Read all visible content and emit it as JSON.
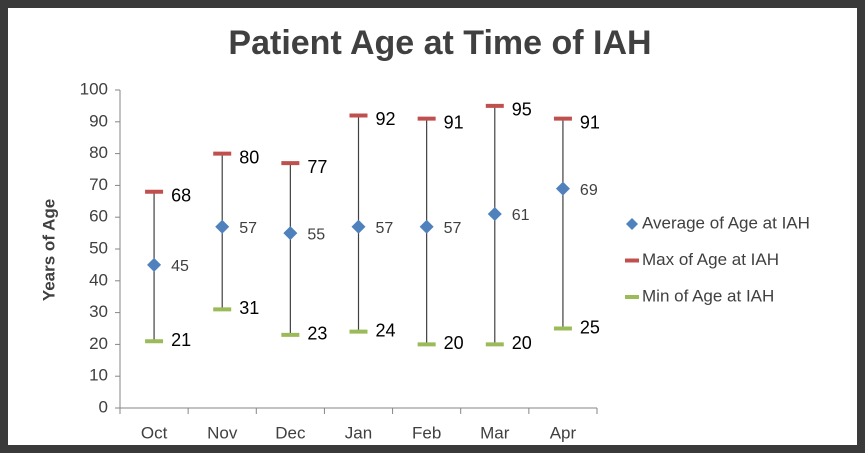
{
  "chart_data": {
    "type": "range",
    "title": "Patient Age at Time of IAH",
    "y_label": "Years of Age",
    "categories": [
      "Oct",
      "Nov",
      "Dec",
      "Jan",
      "Feb",
      "Mar",
      "Apr"
    ],
    "series": [
      {
        "name": "Average of Age at IAH",
        "color": "#4f81bd",
        "values": [
          45,
          57,
          55,
          57,
          57,
          61,
          69
        ]
      },
      {
        "name": "Max of Age at IAH",
        "color": "#c0504d",
        "values": [
          68,
          80,
          77,
          92,
          91,
          95,
          91
        ]
      },
      {
        "name": "Min of Age at IAH",
        "color": "#9bbb59",
        "values": [
          21,
          31,
          23,
          24,
          20,
          20,
          25
        ]
      }
    ],
    "ylim": [
      0,
      100
    ],
    "yticks": [
      0,
      10,
      20,
      30,
      40,
      50,
      60,
      70,
      80,
      90,
      100
    ],
    "grid": false,
    "legend": "right"
  }
}
